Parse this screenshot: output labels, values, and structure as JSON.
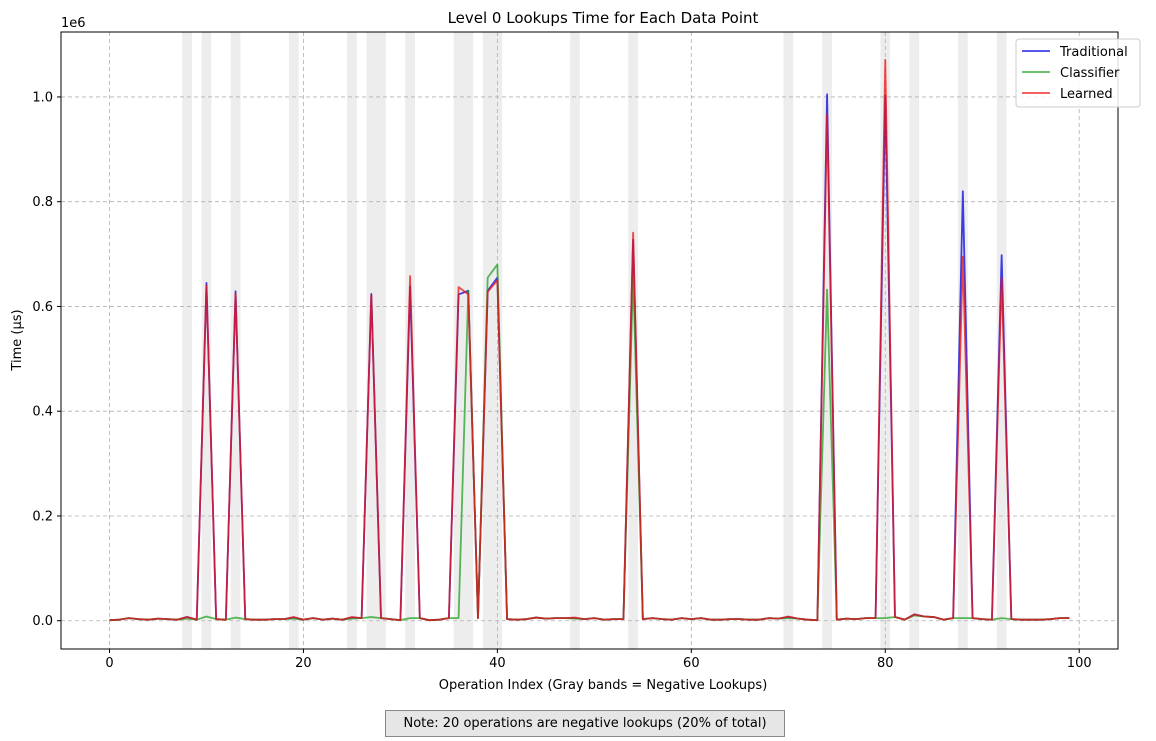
{
  "chart_data": {
    "type": "line",
    "title": "Level 0 Lookups Time for Each Data Point",
    "xlabel": "Operation Index (Gray bands = Negative Lookups)",
    "ylabel": "Time (µs)",
    "y_offset_label": "1e6",
    "xlim": [
      -5,
      104
    ],
    "ylim": [
      -54000,
      1124000
    ],
    "x_ticks": [
      0,
      20,
      40,
      60,
      80,
      100
    ],
    "x_tick_labels": [
      "0",
      "20",
      "40",
      "60",
      "80",
      "100"
    ],
    "y_ticks": [
      0,
      200000,
      400000,
      600000,
      800000,
      1000000
    ],
    "y_tick_labels": [
      "0.0",
      "0.2",
      "0.4",
      "0.6",
      "0.8",
      "1.0"
    ],
    "grid": true,
    "legend_position": "top-right",
    "negative_lookup_bands": [
      8,
      10,
      13,
      19,
      25,
      27,
      28,
      31,
      36,
      37,
      39,
      40,
      48,
      54,
      70,
      74,
      80,
      83,
      88,
      92
    ],
    "series": [
      {
        "name": "Traditional",
        "color": "#0000dd",
        "values": [
          1000,
          2000,
          5000,
          3000,
          2000,
          4000,
          3000,
          2000,
          7000,
          2000,
          645000,
          3000,
          2000,
          629000,
          3000,
          2000,
          2000,
          3000,
          3000,
          6000,
          2000,
          5000,
          2000,
          4000,
          2000,
          6000,
          5000,
          624000,
          5000,
          3000,
          1000,
          638000,
          5000,
          1000,
          2000,
          5000,
          623000,
          630000,
          5000,
          630000,
          655000,
          3000,
          2000,
          3000,
          6000,
          4000,
          5000,
          5000,
          5000,
          3000,
          5000,
          2000,
          3000,
          3000,
          727000,
          3000,
          5000,
          3000,
          2000,
          5000,
          3000,
          5000,
          2000,
          2000,
          3000,
          3000,
          2000,
          2000,
          5000,
          4000,
          7000,
          4000,
          2000,
          1000,
          1005000,
          2000,
          4000,
          3000,
          5000,
          5000,
          1003000,
          7000,
          2000,
          12000,
          8000,
          7000,
          2000,
          5000,
          820000,
          5000,
          3000,
          2000,
          698000,
          3000,
          2000,
          2000,
          2000,
          3000,
          5000,
          5000
        ]
      },
      {
        "name": "Classifier",
        "color": "#22a022",
        "values": [
          1000,
          2000,
          5000,
          3000,
          2000,
          4000,
          3000,
          2000,
          4000,
          2000,
          8000,
          3000,
          2000,
          6000,
          3000,
          2000,
          2000,
          3000,
          3000,
          4000,
          2000,
          5000,
          2000,
          4000,
          2000,
          4000,
          5000,
          7000,
          5000,
          3000,
          1000,
          5000,
          5000,
          1000,
          2000,
          5000,
          5000,
          630000,
          5000,
          655000,
          680000,
          3000,
          2000,
          3000,
          6000,
          4000,
          5000,
          5000,
          4000,
          3000,
          5000,
          2000,
          3000,
          3000,
          660000,
          3000,
          5000,
          3000,
          2000,
          5000,
          3000,
          5000,
          2000,
          2000,
          3000,
          3000,
          2000,
          2000,
          5000,
          4000,
          5000,
          4000,
          2000,
          1000,
          632000,
          2000,
          4000,
          3000,
          5000,
          5000,
          5000,
          7000,
          2000,
          10000,
          8000,
          7000,
          2000,
          5000,
          5000,
          5000,
          3000,
          2000,
          5000,
          3000,
          2000,
          2000,
          2000,
          3000,
          5000,
          5000
        ]
      },
      {
        "name": "Learned",
        "color": "#ee1111",
        "values": [
          1000,
          2000,
          5000,
          3000,
          2000,
          4000,
          3000,
          2000,
          7000,
          2000,
          640000,
          3000,
          2000,
          625000,
          3000,
          2000,
          2000,
          3000,
          3000,
          7000,
          2000,
          5000,
          2000,
          4000,
          2000,
          7000,
          5000,
          622000,
          5000,
          3000,
          1000,
          658000,
          5000,
          1000,
          2000,
          5000,
          637000,
          623000,
          5000,
          628000,
          650000,
          3000,
          2000,
          3000,
          6000,
          4000,
          5000,
          5000,
          6000,
          3000,
          5000,
          2000,
          3000,
          3000,
          741000,
          3000,
          5000,
          3000,
          2000,
          5000,
          3000,
          5000,
          2000,
          2000,
          3000,
          3000,
          2000,
          2000,
          5000,
          4000,
          8000,
          4000,
          2000,
          1000,
          967000,
          2000,
          4000,
          3000,
          5000,
          5000,
          1071000,
          7000,
          2000,
          12000,
          8000,
          7000,
          2000,
          5000,
          695000,
          5000,
          3000,
          2000,
          655000,
          3000,
          2000,
          2000,
          2000,
          3000,
          5000,
          5000
        ]
      }
    ]
  },
  "note": "Note: 20 operations are negative lookups (20% of total)"
}
